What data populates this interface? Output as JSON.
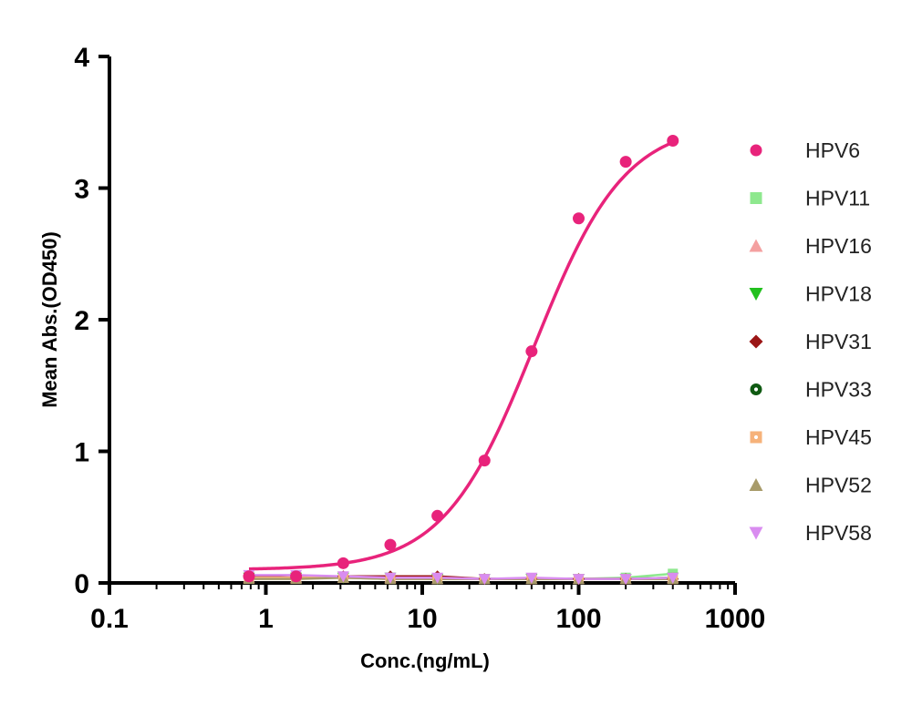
{
  "chart_data": {
    "type": "scatter",
    "title": "",
    "xlabel": "Conc.(ng/mL)",
    "ylabel": "Mean Abs.(OD450)",
    "xscale": "log",
    "xlim": [
      0.1,
      1000
    ],
    "ylim": [
      0,
      4
    ],
    "x_ticks": [
      "0.1",
      "1",
      "10",
      "100",
      "1000"
    ],
    "y_ticks": [
      "0",
      "1",
      "2",
      "3",
      "4"
    ],
    "grid": false,
    "legend_position": "right",
    "x": [
      0.78,
      1.56,
      3.125,
      6.25,
      12.5,
      25,
      50,
      100,
      200,
      400
    ],
    "series": [
      {
        "name": "HPV6",
        "color": "#e8237b",
        "marker": "circle",
        "values": [
          0.05,
          0.05,
          0.15,
          0.29,
          0.51,
          0.93,
          1.76,
          2.77,
          3.2,
          3.36
        ],
        "fit": true
      },
      {
        "name": "HPV11",
        "color": "#8ee88e",
        "marker": "square",
        "values": [
          0.04,
          0.04,
          0.04,
          0.04,
          0.03,
          0.03,
          0.03,
          0.03,
          0.04,
          0.07
        ]
      },
      {
        "name": "HPV16",
        "color": "#f4a0a0",
        "marker": "triangle-up",
        "values": [
          0.04,
          0.04,
          0.04,
          0.04,
          0.03,
          0.03,
          0.03,
          0.03,
          0.03,
          0.04
        ]
      },
      {
        "name": "HPV18",
        "color": "#22c01e",
        "marker": "triangle-down",
        "values": [
          0.04,
          0.04,
          0.04,
          0.04,
          0.03,
          0.03,
          0.03,
          0.03,
          0.03,
          0.04
        ]
      },
      {
        "name": "HPV31",
        "color": "#9b1616",
        "marker": "diamond",
        "values": [
          0.05,
          0.04,
          0.05,
          0.05,
          0.05,
          0.03,
          0.03,
          0.03,
          0.03,
          0.03
        ]
      },
      {
        "name": "HPV33",
        "color": "#0f5a12",
        "marker": "circle-dot",
        "values": [
          0.04,
          0.04,
          0.04,
          0.04,
          0.03,
          0.03,
          0.03,
          0.03,
          0.03,
          0.03
        ]
      },
      {
        "name": "HPV45",
        "color": "#f6b27a",
        "marker": "square-dot",
        "values": [
          0.04,
          0.04,
          0.04,
          0.03,
          0.03,
          0.03,
          0.03,
          0.03,
          0.03,
          0.03
        ]
      },
      {
        "name": "HPV52",
        "color": "#a89b6a",
        "marker": "triangle-up",
        "values": [
          0.03,
          0.03,
          0.04,
          0.03,
          0.03,
          0.03,
          0.03,
          0.03,
          0.03,
          0.03
        ]
      },
      {
        "name": "HPV58",
        "color": "#d98cf0",
        "marker": "triangle-down",
        "values": [
          0.06,
          0.06,
          0.05,
          0.04,
          0.04,
          0.03,
          0.04,
          0.03,
          0.03,
          0.04
        ]
      }
    ]
  }
}
